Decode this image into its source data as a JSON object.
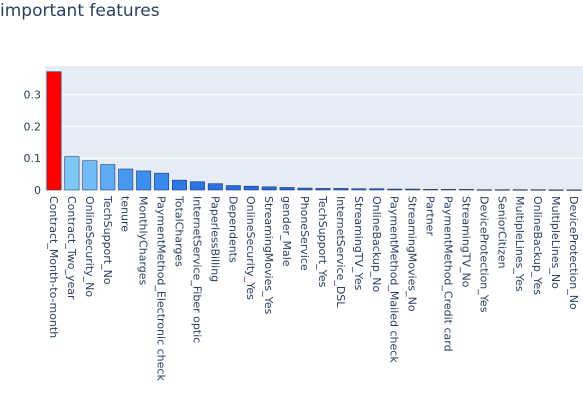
{
  "chart_data": {
    "type": "bar",
    "title": "important features",
    "xlabel": "",
    "ylabel": "",
    "ylim": [
      0,
      0.39
    ],
    "yticks": [
      0,
      0.1,
      0.2,
      0.3
    ],
    "ytick_labels": [
      "0",
      "0.1",
      "0.2",
      "0.3"
    ],
    "grid": true,
    "legend": "none",
    "colors": {
      "plot_background": "#e5ecf6",
      "gridline": "#ffffff",
      "text": "#2a3f5f",
      "highlight_bar": "#ff0000",
      "bar_light": "#7ec8f8",
      "bar_mid": "#3e8ef0",
      "bar_dark": "#1f5fe0"
    },
    "categories": [
      "Contract_Month-to-month",
      "Contract_Two_year",
      "OnlineSecurity_No",
      "TechSupport_No",
      "tenure",
      "MonthlyCharges",
      "PaymentMethod_Electronic check",
      "TotalCharges",
      "InternetService_Fiber optic",
      "PaperlessBilling",
      "Dependents",
      "OnlineSecurity_Yes",
      "StreamingMovies_Yes",
      "gender_Male",
      "PhoneService",
      "TechSupport_Yes",
      "InternetService_DSL",
      "StreamingTV_Yes",
      "OnlineBackup_No",
      "PaymentMethod_Mailed check",
      "StreamingMovies_No",
      "Partner",
      "PaymentMethod_Credit card",
      "StreamingTV_No",
      "DeviceProtection_Yes",
      "SeniorCitizen",
      "MultipleLines_Yes",
      "OnlineBackup_Yes",
      "MultipleLines_No",
      "DeviceProtection_No"
    ],
    "values": [
      0.372,
      0.105,
      0.092,
      0.08,
      0.066,
      0.06,
      0.053,
      0.031,
      0.026,
      0.02,
      0.014,
      0.012,
      0.01,
      0.008,
      0.006,
      0.005,
      0.005,
      0.004,
      0.004,
      0.003,
      0.003,
      0.002,
      0.002,
      0.002,
      0.001,
      0.001,
      0.001,
      0.001,
      0.0005,
      0.0005
    ]
  }
}
